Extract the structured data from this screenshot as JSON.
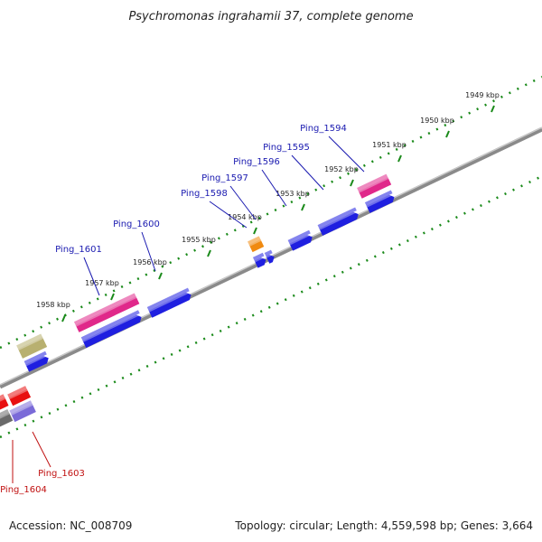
{
  "title": "Psychromonas ingrahamii 37, complete genome",
  "footer": {
    "accession": "Accession: NC_008709",
    "summary": "Topology: circular; Length: 4,559,598 bp; Genes: 3,664"
  },
  "ticks": [
    "1949 kbp",
    "1950 kbp",
    "1951 kbp",
    "1952 kbp",
    "1953 kbp",
    "1954 kbp",
    "1955 kbp",
    "1956 kbp",
    "1957 kbp",
    "1958 kbp"
  ],
  "gene_labels_top": [
    "Ping_1594",
    "Ping_1595",
    "Ping_1596",
    "Ping_1597",
    "Ping_1598",
    "Ping_1600",
    "Ping_1601"
  ],
  "gene_labels_bottom": [
    "Ping_1603",
    "Ping_1604"
  ],
  "colors": {
    "forward_gene": "#1f1fe0",
    "pink_gene": "#e0288a",
    "orange_gene": "#f08a10",
    "olive_gene": "#b8b070",
    "red_gene": "#e81010",
    "purple_gene": "#7a6ad8",
    "label_blue": "#1a1ab0",
    "label_red": "#c01010",
    "tick_green": "#1a8a1a",
    "backbone": "#7a7a7a"
  }
}
